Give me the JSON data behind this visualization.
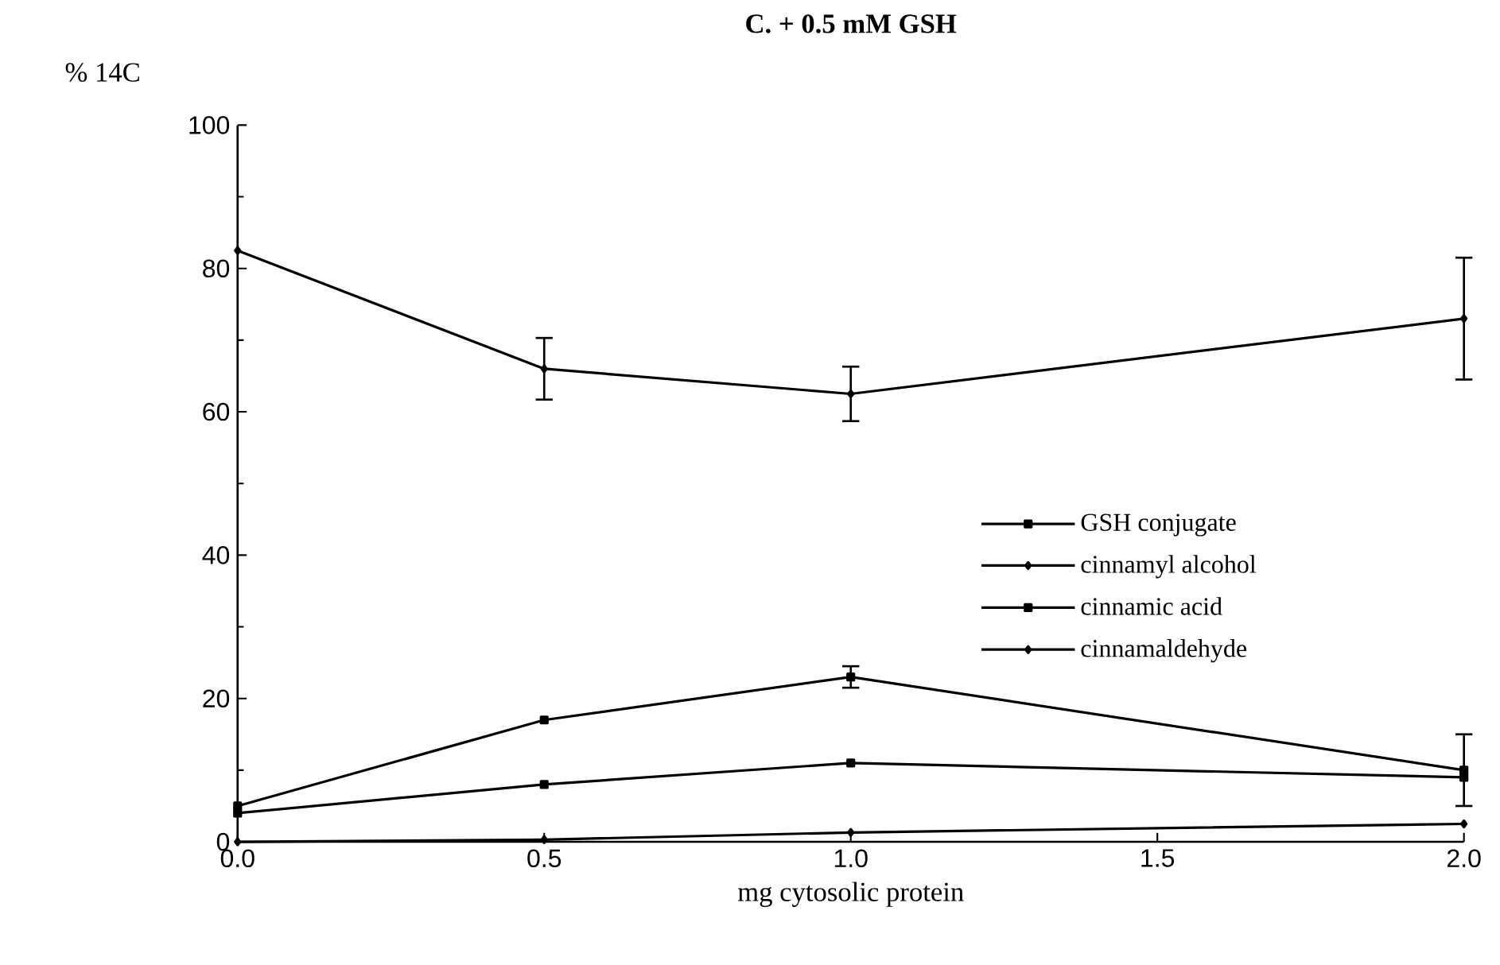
{
  "chart_data": {
    "type": "line",
    "title": "C. + 0.5 mM GSH",
    "xlabel": "mg cytosolic protein",
    "ylabel": "% 14C",
    "x": [
      0.0,
      0.5,
      1.0,
      2.0
    ],
    "series": [
      {
        "name": "GSH conjugate",
        "color": "#000000",
        "marker": "square",
        "values": [
          5,
          17,
          23,
          10
        ],
        "errors": [
          null,
          null,
          1.5,
          5
        ]
      },
      {
        "name": "cinnamyl alcohol",
        "color": "#000000",
        "marker": "diamond",
        "values": [
          0,
          0.3,
          1.3,
          2.5
        ]
      },
      {
        "name": "cinnamic acid",
        "color": "#000000",
        "marker": "square",
        "values": [
          4,
          8,
          11,
          9
        ]
      },
      {
        "name": "cinnamaldehyde",
        "color": "#000000",
        "marker": "diamond",
        "values": [
          82.5,
          66,
          62.5,
          73
        ],
        "errors": [
          null,
          4.3,
          3.8,
          8.5
        ]
      }
    ],
    "xlim": [
      0,
      2.0
    ],
    "ylim": [
      0,
      100
    ],
    "xticks": [
      {
        "value": 0,
        "label": "0.0"
      },
      {
        "value": 0.5,
        "label": "0.5"
      },
      {
        "value": 1.0,
        "label": "1.0"
      },
      {
        "value": 1.5,
        "label": "1.5"
      },
      {
        "value": 2.0,
        "label": "2.0"
      }
    ],
    "yticks": [
      0,
      20,
      40,
      60,
      80,
      100
    ],
    "grid": false,
    "legend": "right",
    "line_style": "solid"
  }
}
